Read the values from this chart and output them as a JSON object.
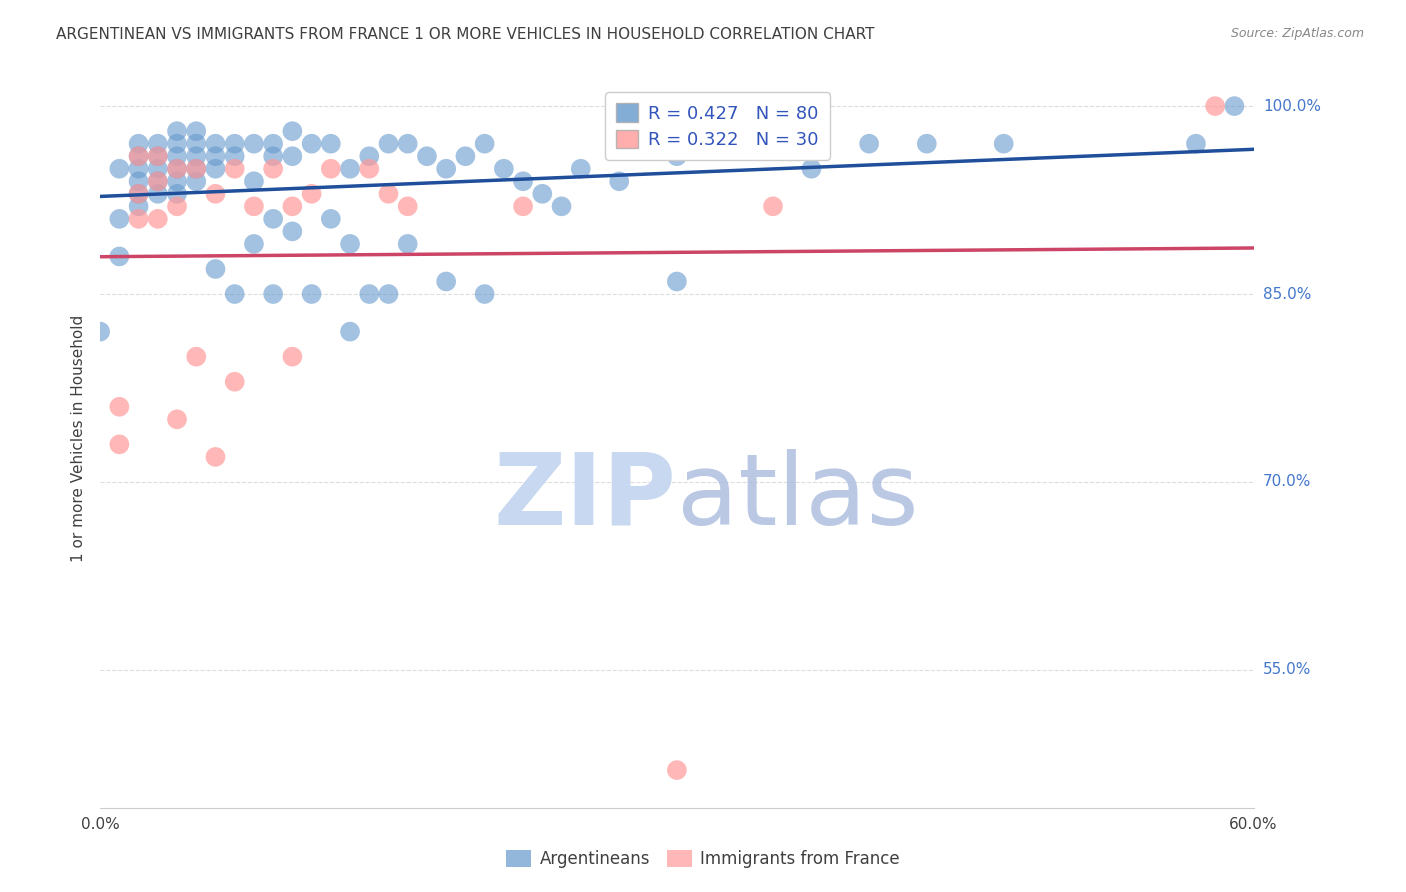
{
  "title": "ARGENTINEAN VS IMMIGRANTS FROM FRANCE 1 OR MORE VEHICLES IN HOUSEHOLD CORRELATION CHART",
  "source": "Source: ZipAtlas.com",
  "ylabel": "1 or more Vehicles in Household",
  "R_arg": 0.427,
  "N_arg": 80,
  "R_fr": 0.322,
  "N_fr": 30,
  "legend_labels": [
    "Argentineans",
    "Immigrants from France"
  ],
  "blue_color": "#6699CC",
  "pink_color": "#FF9999",
  "blue_line_color": "#1F4E9B",
  "pink_line_color": "#CC4466",
  "legend_text_color": "#3355BB",
  "watermark_zip_color": "#C8D8F0",
  "watermark_atlas_color": "#AABBDD",
  "title_color": "#404040",
  "axis_label_color": "#404040",
  "tick_label_color_right": "#4477CC",
  "background_color": "#FFFFFF",
  "grid_color": "#DDDDDD",
  "xmin": 0.0,
  "xmax": 0.6,
  "ymin": 0.44,
  "ymax": 1.03,
  "argentinean_x": [
    0.0,
    0.01,
    0.01,
    0.01,
    0.02,
    0.02,
    0.02,
    0.02,
    0.02,
    0.02,
    0.03,
    0.03,
    0.03,
    0.03,
    0.03,
    0.04,
    0.04,
    0.04,
    0.04,
    0.04,
    0.04,
    0.05,
    0.05,
    0.05,
    0.05,
    0.05,
    0.06,
    0.06,
    0.06,
    0.06,
    0.07,
    0.07,
    0.07,
    0.08,
    0.08,
    0.08,
    0.09,
    0.09,
    0.09,
    0.09,
    0.1,
    0.1,
    0.1,
    0.11,
    0.11,
    0.12,
    0.12,
    0.13,
    0.13,
    0.13,
    0.14,
    0.14,
    0.15,
    0.15,
    0.16,
    0.16,
    0.17,
    0.18,
    0.18,
    0.19,
    0.2,
    0.2,
    0.21,
    0.22,
    0.23,
    0.24,
    0.25,
    0.27,
    0.28,
    0.3,
    0.3,
    0.3,
    0.33,
    0.35,
    0.37,
    0.4,
    0.43,
    0.47,
    0.57,
    0.59
  ],
  "argentinean_y": [
    0.82,
    0.95,
    0.91,
    0.88,
    0.97,
    0.96,
    0.95,
    0.94,
    0.93,
    0.92,
    0.97,
    0.96,
    0.95,
    0.94,
    0.93,
    0.98,
    0.97,
    0.96,
    0.95,
    0.94,
    0.93,
    0.98,
    0.97,
    0.96,
    0.95,
    0.94,
    0.97,
    0.96,
    0.95,
    0.87,
    0.97,
    0.96,
    0.85,
    0.97,
    0.94,
    0.89,
    0.97,
    0.96,
    0.91,
    0.85,
    0.98,
    0.96,
    0.9,
    0.97,
    0.85,
    0.97,
    0.91,
    0.95,
    0.89,
    0.82,
    0.96,
    0.85,
    0.97,
    0.85,
    0.97,
    0.89,
    0.96,
    0.95,
    0.86,
    0.96,
    0.97,
    0.85,
    0.95,
    0.94,
    0.93,
    0.92,
    0.95,
    0.94,
    0.97,
    0.97,
    0.96,
    0.86,
    0.97,
    0.97,
    0.95,
    0.97,
    0.97,
    0.97,
    0.97,
    1.0
  ],
  "france_x": [
    0.01,
    0.01,
    0.02,
    0.02,
    0.02,
    0.03,
    0.03,
    0.03,
    0.04,
    0.04,
    0.04,
    0.05,
    0.05,
    0.06,
    0.06,
    0.07,
    0.07,
    0.08,
    0.09,
    0.1,
    0.1,
    0.11,
    0.12,
    0.14,
    0.15,
    0.16,
    0.22,
    0.3,
    0.35,
    0.58
  ],
  "france_y": [
    0.76,
    0.73,
    0.96,
    0.93,
    0.91,
    0.96,
    0.94,
    0.91,
    0.95,
    0.92,
    0.75,
    0.95,
    0.8,
    0.93,
    0.72,
    0.95,
    0.78,
    0.92,
    0.95,
    0.92,
    0.8,
    0.93,
    0.95,
    0.95,
    0.93,
    0.92,
    0.92,
    0.47,
    0.92,
    1.0
  ]
}
